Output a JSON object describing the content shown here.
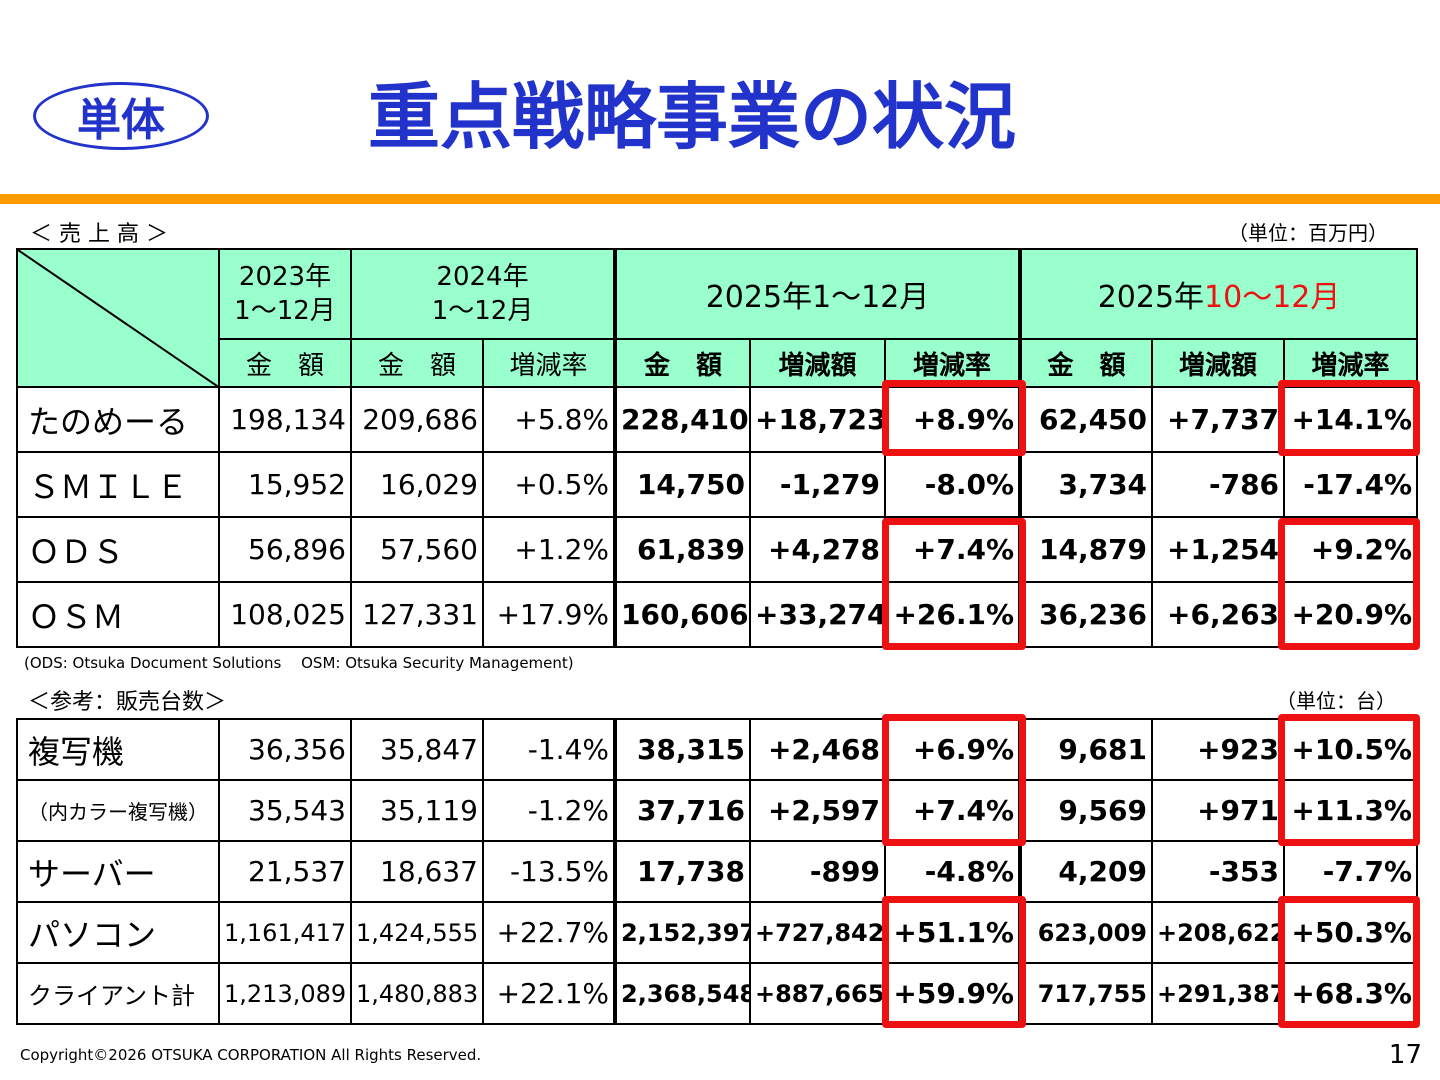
{
  "badge": "単体",
  "title": "重点戦略事業の状況",
  "sales": {
    "label": "＜ 売 上 高 ＞",
    "unit": "（単位：百万円）",
    "header": {
      "y2023": [
        "2023年",
        "1〜12月"
      ],
      "y2024": [
        "2024年",
        "1〜12月"
      ],
      "full_year": "2025年1〜12月",
      "q4_prefix": "2025年",
      "q4_highlight": "10〜12月",
      "amount": "金　額",
      "change": "増減額",
      "rate": "増減率"
    },
    "rows": [
      {
        "name": "たのめーる",
        "v2023": "198,134",
        "v2024": "209,686",
        "r2024": "+5.8%",
        "amt": "228,410",
        "chg": "+18,723",
        "rate": "+8.9%",
        "q_amt": "62,450",
        "q_chg": "+7,737",
        "q_rate": "+14.1%"
      },
      {
        "name": "ＳＭＩＬＥ",
        "v2023": "15,952",
        "v2024": "16,029",
        "r2024": "+0.5%",
        "amt": "14,750",
        "chg": "-1,279",
        "rate": "-8.0%",
        "q_amt": "3,734",
        "q_chg": "-786",
        "q_rate": "-17.4%"
      },
      {
        "name": "ＯＤＳ",
        "v2023": "56,896",
        "v2024": "57,560",
        "r2024": "+1.2%",
        "amt": "61,839",
        "chg": "+4,278",
        "rate": "+7.4%",
        "q_amt": "14,879",
        "q_chg": "+1,254",
        "q_rate": "+9.2%"
      },
      {
        "name": "ＯＳＭ",
        "v2023": "108,025",
        "v2024": "127,331",
        "r2024": "+17.9%",
        "amt": "160,606",
        "chg": "+33,274",
        "rate": "+26.1%",
        "q_amt": "36,236",
        "q_chg": "+6,263",
        "q_rate": "+20.9%"
      }
    ]
  },
  "note": "(ODS: Otsuka Document Solutions　 OSM: Otsuka Security Management)",
  "units_sold": {
    "label": "＜参考：販売台数＞",
    "unit": "（単位：台）",
    "rows": [
      {
        "name": "複写機",
        "v2023": "36,356",
        "v2024": "35,847",
        "r2024": "-1.4%",
        "amt": "38,315",
        "chg": "+2,468",
        "rate": "+6.9%",
        "q_amt": "9,681",
        "q_chg": "+923",
        "q_rate": "+10.5%"
      },
      {
        "name": "（内カラー複写機）",
        "v2023": "35,543",
        "v2024": "35,119",
        "r2024": "-1.2%",
        "amt": "37,716",
        "chg": "+2,597",
        "rate": "+7.4%",
        "q_amt": "9,569",
        "q_chg": "+971",
        "q_rate": "+11.3%"
      },
      {
        "name": "サーバー",
        "v2023": "21,537",
        "v2024": "18,637",
        "r2024": "-13.5%",
        "amt": "17,738",
        "chg": "-899",
        "rate": "-4.8%",
        "q_amt": "4,209",
        "q_chg": "-353",
        "q_rate": "-7.7%"
      },
      {
        "name": "パソコン",
        "v2023": "1,161,417",
        "v2024": "1,424,555",
        "r2024": "+22.7%",
        "amt": "2,152,397",
        "chg": "+727,842",
        "rate": "+51.1%",
        "q_amt": "623,009",
        "q_chg": "+208,622",
        "q_rate": "+50.3%"
      },
      {
        "name": "クライアント計",
        "v2023": "1,213,089",
        "v2024": "1,480,883",
        "r2024": "+22.1%",
        "amt": "2,368,548",
        "chg": "+887,665",
        "rate": "+59.9%",
        "q_amt": "717,755",
        "q_chg": "+291,387",
        "q_rate": "+68.3%"
      }
    ]
  },
  "copyright": "Copyright©2026 OTSUKA CORPORATION All Rights Reserved.",
  "page_number": "17",
  "colors": {
    "title": "#2233cc",
    "header_bg": "#99ffcc",
    "highlight_box": "#ee1111",
    "accent_bar": "#ff9900"
  }
}
